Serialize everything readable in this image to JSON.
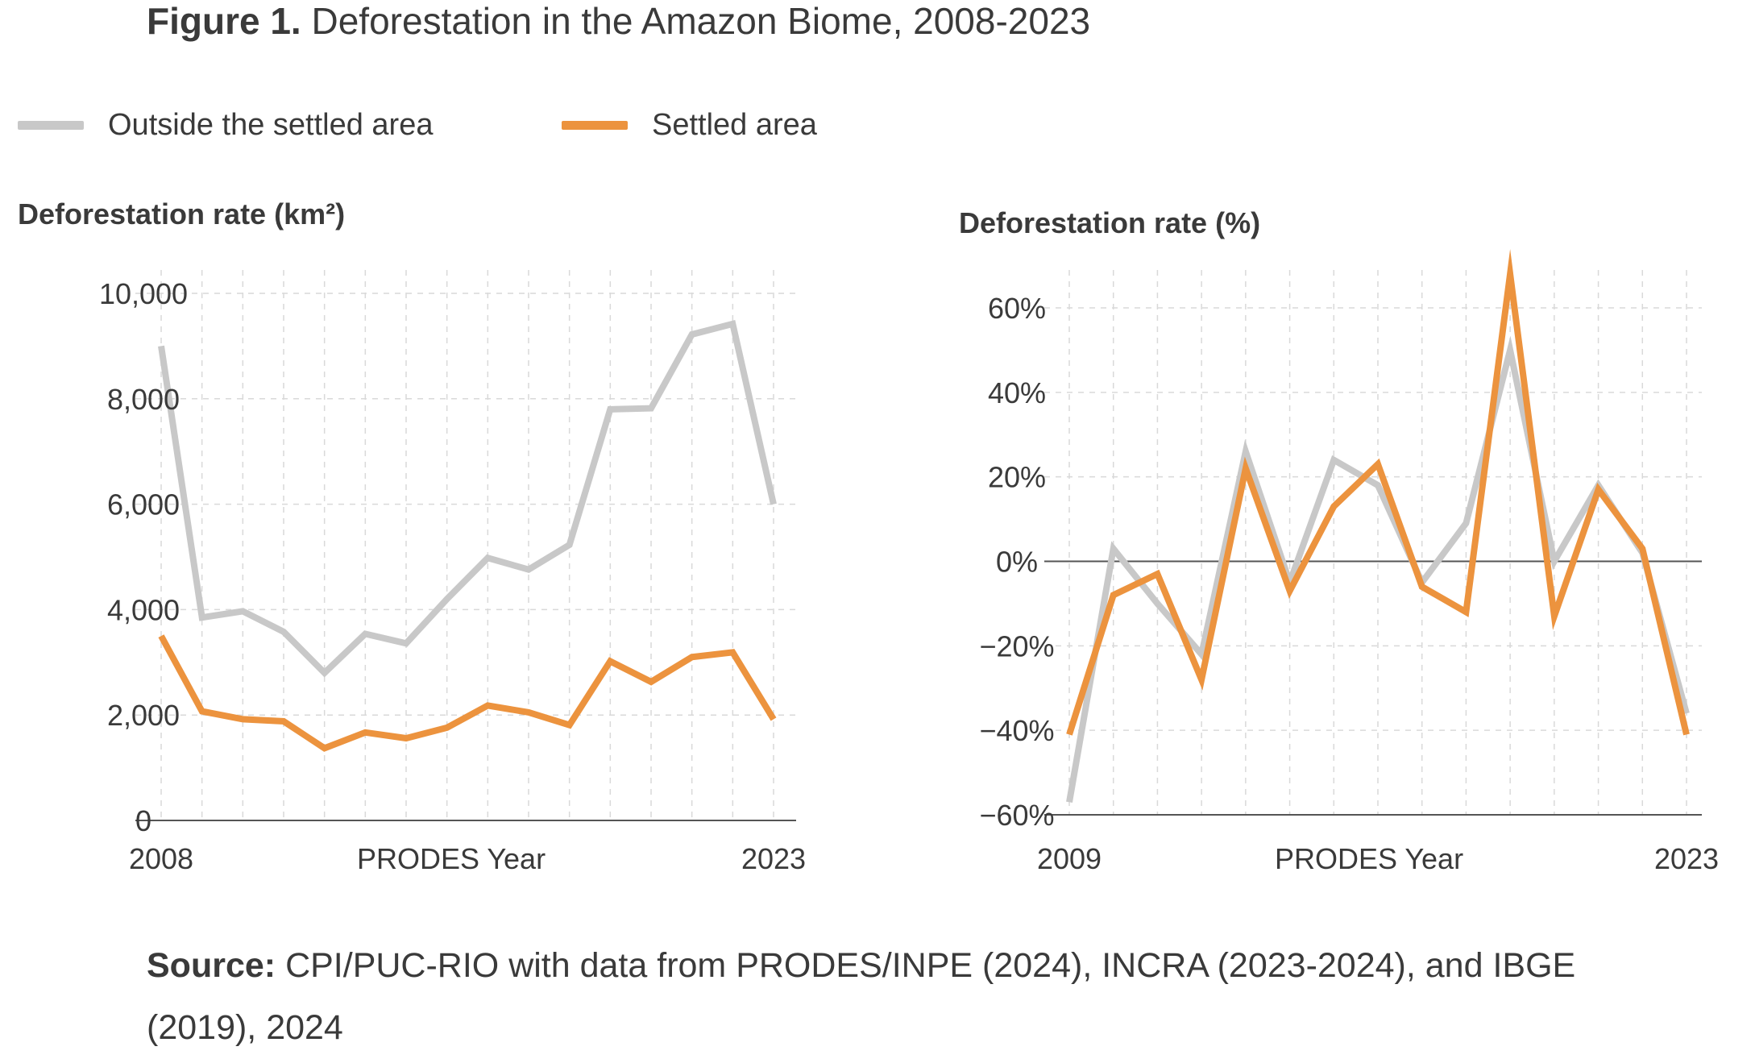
{
  "title": {
    "prefix": "Figure 1.",
    "text": "Deforestation in the Amazon Biome, 2008-2023"
  },
  "legend": [
    {
      "label": "Outside the settled area",
      "color": "#c8c8c8"
    },
    {
      "label": "Settled area",
      "color": "#ec933e"
    }
  ],
  "source": {
    "prefix": "Source:",
    "text": "CPI/PUC-RIO with data from PRODES/INPE (2024), INCRA (2023-2024), and IBGE (2019), 2024"
  },
  "chart_data": [
    {
      "type": "line",
      "ylabel": "Deforestation rate (km²)",
      "xlabel": "PRODES Year",
      "x": [
        2008,
        2009,
        2010,
        2011,
        2012,
        2013,
        2014,
        2015,
        2016,
        2017,
        2018,
        2019,
        2020,
        2021,
        2022,
        2023
      ],
      "x_tick_labels": [
        "2008",
        "2023"
      ],
      "ylim": [
        0,
        10000
      ],
      "y_ticks": [
        0,
        2000,
        4000,
        6000,
        8000,
        10000
      ],
      "y_tick_labels": [
        "0",
        "2,000",
        "4,000",
        "6,000",
        "8,000",
        "10,000"
      ],
      "grid": true,
      "legend_position": "top-left",
      "series": [
        {
          "name": "Outside the settled area",
          "color": "#c8c8c8",
          "values": [
            9000,
            3850,
            3970,
            3580,
            2800,
            3540,
            3360,
            4200,
            4980,
            4760,
            5230,
            7800,
            7820,
            9220,
            9420,
            6000
          ]
        },
        {
          "name": "Settled area",
          "color": "#ec933e",
          "values": [
            3500,
            2070,
            1920,
            1880,
            1370,
            1670,
            1560,
            1760,
            2180,
            2050,
            1810,
            3020,
            2630,
            3100,
            3190,
            1920
          ]
        }
      ]
    },
    {
      "type": "line",
      "ylabel": "Deforestation rate (%)",
      "xlabel": "PRODES Year",
      "x": [
        2009,
        2010,
        2011,
        2012,
        2013,
        2014,
        2015,
        2016,
        2017,
        2018,
        2019,
        2020,
        2021,
        2022,
        2023
      ],
      "x_tick_labels": [
        "2009",
        "2023"
      ],
      "ylim": [
        -60,
        60
      ],
      "y_ticks": [
        -60,
        -40,
        -20,
        0,
        20,
        40,
        60
      ],
      "y_tick_labels": [
        "−60%",
        "−40%",
        "−20%",
        "0%",
        "20%",
        "40%",
        "60%"
      ],
      "grid": true,
      "series": [
        {
          "name": "Outside the settled area",
          "color": "#c8c8c8",
          "values": [
            -57,
            3,
            -10,
            -22,
            26,
            -5,
            24,
            18,
            -5,
            9,
            50,
            0,
            18,
            2,
            -36
          ]
        },
        {
          "name": "Settled area",
          "color": "#ec933e",
          "values": [
            -41,
            -8,
            -3,
            -28,
            22,
            -7,
            13,
            23,
            -6,
            -12,
            68,
            -13,
            17,
            3,
            -41
          ]
        }
      ]
    }
  ]
}
